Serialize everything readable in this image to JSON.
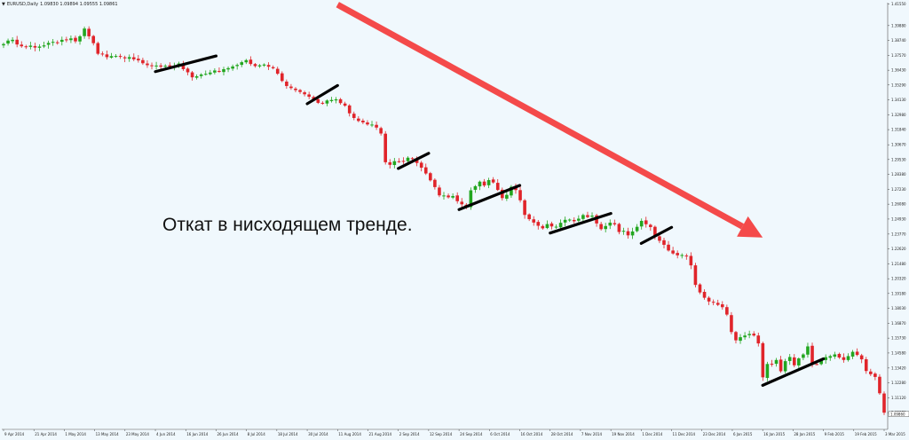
{
  "header": {
    "dropdown_icon": "triangle-down-icon",
    "symbol_label": "EURUSD,Daily",
    "ohlc": "1.09830 1.09894 1.09555 1.09861"
  },
  "caption": "Откат в нисходящем тренде.",
  "colors": {
    "background": "#f0f8fd",
    "bull": "#22a61f",
    "bear": "#e0242a",
    "arrow": "#f44a4a",
    "trendline": "#000000"
  },
  "chart_data": {
    "type": "candlestick",
    "symbol": "EURUSD",
    "timeframe": "Daily",
    "ylim": [
      1.0868,
      1.4165
    ],
    "y_ticks": [
      1.4155,
      1.3988,
      1.3874,
      1.3757,
      1.3643,
      1.3529,
      1.3413,
      1.3298,
      1.3184,
      1.3067,
      1.2953,
      1.2838,
      1.2723,
      1.2608,
      1.2493,
      1.2377,
      1.2262,
      1.2148,
      1.2032,
      1.1918,
      1.1803,
      1.1687,
      1.1573,
      1.1458,
      1.1342,
      1.1228,
      1.1112,
      1.0997
    ],
    "x_ticks": [
      "9 Apr 2014",
      "21 Apr 2014",
      "1 May 2014",
      "13 May 2014",
      "23 May 2014",
      "4 Jun 2014",
      "16 Jun 2014",
      "26 Jun 2014",
      "8 Jul 2014",
      "18 Jul 2014",
      "30 Jul 2014",
      "11 Aug 2014",
      "21 Aug 2014",
      "2 Sep 2014",
      "12 Sep 2014",
      "24 Sep 2014",
      "6 Oct 2014",
      "16 Oct 2014",
      "28 Oct 2014",
      "7 Nov 2014",
      "19 Nov 2014",
      "1 Dec 2014",
      "11 Dec 2014",
      "23 Dec 2014",
      "6 Jan 2015",
      "16 Jan 2015",
      "28 Jan 2015",
      "9 Feb 2015",
      "19 Feb 2015",
      "3 Mar 2015"
    ],
    "current_price": 1.0986,
    "closes": [
      1.3845,
      1.3872,
      1.3878,
      1.3842,
      1.3828,
      1.3822,
      1.3833,
      1.3818,
      1.3826,
      1.3835,
      1.3854,
      1.3862,
      1.3858,
      1.3878,
      1.3876,
      1.3889,
      1.3866,
      1.3905,
      1.3965,
      1.3905,
      1.3852,
      1.377,
      1.3766,
      1.3744,
      1.3752,
      1.3753,
      1.3748,
      1.3735,
      1.3744,
      1.3727,
      1.3719,
      1.3697,
      1.3682,
      1.368,
      1.3679,
      1.367,
      1.3677,
      1.3671,
      1.3676,
      1.3695,
      1.3651,
      1.3627,
      1.3588,
      1.3596,
      1.361,
      1.3615,
      1.3625,
      1.3641,
      1.3633,
      1.3651,
      1.3659,
      1.3672,
      1.3684,
      1.3705,
      1.3721,
      1.3691,
      1.3675,
      1.3681,
      1.3687,
      1.367,
      1.3658,
      1.3616,
      1.356,
      1.3521,
      1.3505,
      1.3489,
      1.3475,
      1.3457,
      1.3438,
      1.342,
      1.3391,
      1.3389,
      1.3409,
      1.3413,
      1.3418,
      1.3389,
      1.3369,
      1.331,
      1.3274,
      1.3251,
      1.324,
      1.3224,
      1.3223,
      1.32,
      1.3154,
      1.2932,
      1.2912,
      1.294,
      1.2938,
      1.2937,
      1.2967,
      1.2958,
      1.2926,
      1.289,
      1.2845,
      1.2792,
      1.274,
      1.2676,
      1.2675,
      1.2661,
      1.2671,
      1.2631,
      1.2607,
      1.2585,
      1.2715,
      1.2747,
      1.2782,
      1.2752,
      1.2794,
      1.2776,
      1.2718,
      1.2655,
      1.268,
      1.2742,
      1.2717,
      1.2638,
      1.2525,
      1.2492,
      1.2466,
      1.2441,
      1.2421,
      1.2454,
      1.2436,
      1.2434,
      1.2464,
      1.2487,
      1.2489,
      1.2476,
      1.2496,
      1.2524,
      1.2508,
      1.2519,
      1.2459,
      1.2415,
      1.2439,
      1.2465,
      1.2452,
      1.2393,
      1.2402,
      1.2367,
      1.2397,
      1.2433,
      1.2479,
      1.2453,
      1.2431,
      1.2356,
      1.2325,
      1.2294,
      1.225,
      1.2227,
      1.2213,
      1.2215,
      1.2206,
      1.2135,
      1.1984,
      1.1926,
      1.1885,
      1.1856,
      1.1847,
      1.183,
      1.1812,
      1.1755,
      1.162,
      1.1556,
      1.158,
      1.1593,
      1.1605,
      1.1593,
      1.1532,
      1.127,
      1.1373,
      1.1371,
      1.1404,
      1.1317,
      1.1395,
      1.1427,
      1.1363,
      1.1416,
      1.1447,
      1.1509,
      1.1373,
      1.137,
      1.14,
      1.1426,
      1.1434,
      1.1447,
      1.1423,
      1.1404,
      1.1434,
      1.1467,
      1.1443,
      1.1409,
      1.1319,
      1.1294,
      1.1273,
      1.1147,
      1.0997
    ],
    "trend_arrow": {
      "from": [
        "11 Aug 2014",
        1.415
      ],
      "to": [
        "16 Jan 2015",
        1.235
      ],
      "direction": "down"
    },
    "pullback_lines": [
      {
        "from": [
          "4 Jun 2014",
          1.3632
        ],
        "to": [
          "26 Jun 2014",
          1.3753
        ]
      },
      {
        "from": [
          "30 Jul 2014",
          1.3384
        ],
        "to": [
          "11 Aug 2014",
          1.3525
        ]
      },
      {
        "from": [
          "2 Sep 2014",
          1.2884
        ],
        "to": [
          "12 Sep 2014",
          1.3001
        ]
      },
      {
        "from": [
          "24 Sep 2014",
          1.2566
        ],
        "to": [
          "16 Oct 2014",
          1.2753
        ]
      },
      {
        "from": [
          "28 Oct 2014",
          1.2385
        ],
        "to": [
          "19 Nov 2014",
          1.2536
        ]
      },
      {
        "from": [
          "1 Dec 2014",
          1.2305
        ],
        "to": [
          "11 Dec 2014",
          1.2429
        ]
      },
      {
        "from": [
          "16 Jan 2015",
          1.1208
        ],
        "to": [
          "9 Feb 2015",
          1.1413
        ]
      }
    ]
  }
}
